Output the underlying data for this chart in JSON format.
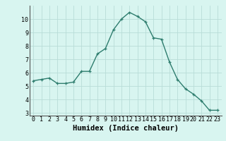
{
  "x": [
    0,
    1,
    2,
    3,
    4,
    5,
    6,
    7,
    8,
    9,
    10,
    11,
    12,
    13,
    14,
    15,
    16,
    17,
    18,
    19,
    20,
    21,
    22,
    23
  ],
  "y": [
    5.4,
    5.5,
    5.6,
    5.2,
    5.2,
    5.3,
    6.1,
    6.1,
    7.4,
    7.8,
    9.2,
    10.0,
    10.5,
    10.2,
    9.8,
    8.6,
    8.5,
    6.8,
    5.5,
    4.8,
    4.4,
    3.9,
    3.2,
    3.2
  ],
  "line_color": "#2e7d6e",
  "marker": "+",
  "bg_color": "#d8f5f0",
  "grid_color": "#b8ddd8",
  "xlabel": "Humidex (Indice chaleur)",
  "xlim": [
    -0.5,
    23.5
  ],
  "ylim": [
    2.8,
    11.0
  ],
  "yticks": [
    3,
    4,
    5,
    6,
    7,
    8,
    9,
    10
  ],
  "xticks": [
    0,
    1,
    2,
    3,
    4,
    5,
    6,
    7,
    8,
    9,
    10,
    11,
    12,
    13,
    14,
    15,
    16,
    17,
    18,
    19,
    20,
    21,
    22,
    23
  ],
  "tick_fontsize": 6,
  "xlabel_fontsize": 7.5,
  "linewidth": 1.0,
  "markersize": 3.5
}
